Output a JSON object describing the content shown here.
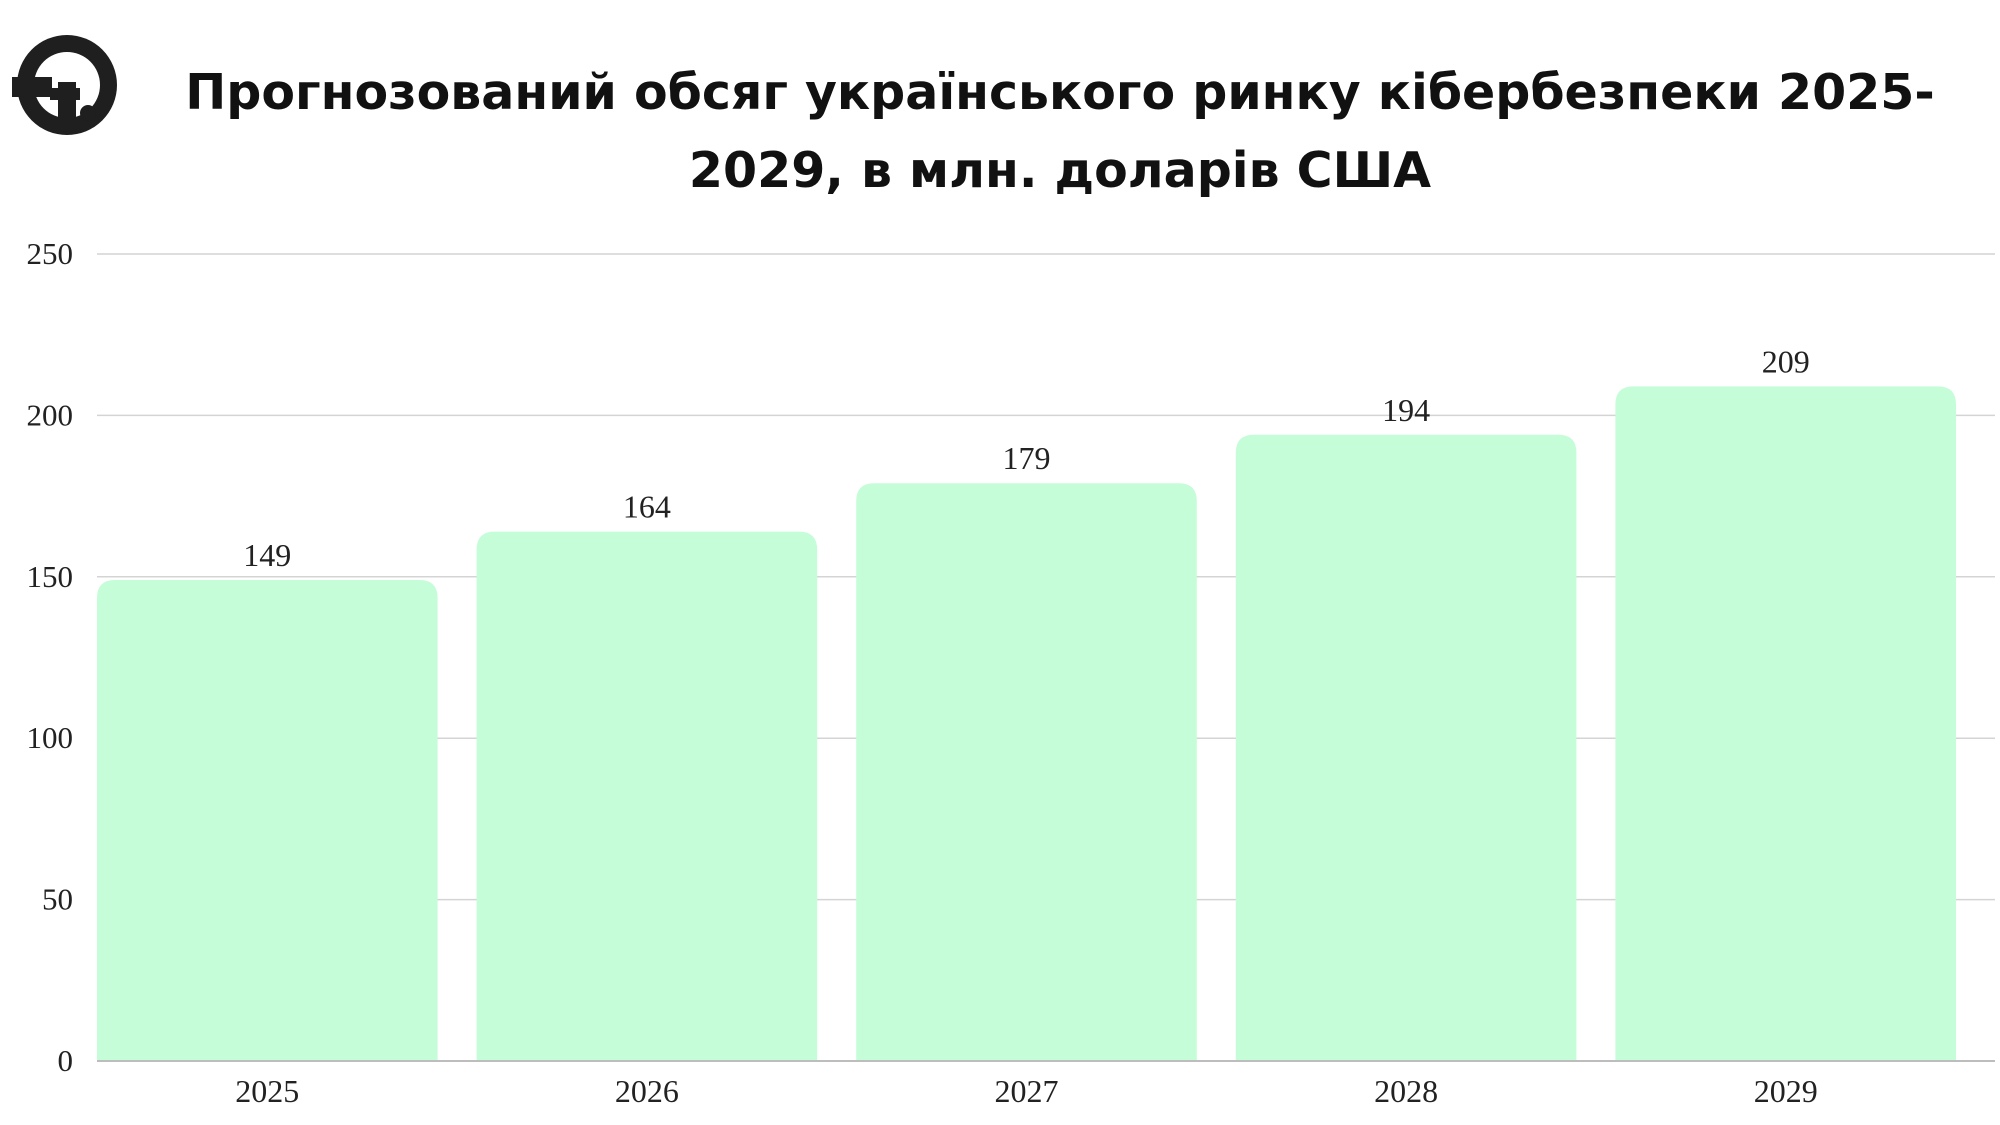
{
  "chart_data": {
    "type": "bar",
    "title": "Прогнозований обсяг українського ринку кібербезпеки 2025-2029, в млн. доларів США",
    "categories": [
      "2025",
      "2026",
      "2027",
      "2028",
      "2029"
    ],
    "values": [
      149,
      164,
      179,
      194,
      209
    ],
    "value_labels": [
      "149",
      "164",
      "179",
      "194",
      "209"
    ],
    "ylim": [
      0,
      250
    ],
    "yticks": [
      0,
      50,
      100,
      150,
      200,
      250
    ],
    "ytick_labels": [
      "0",
      "50",
      "100",
      "150",
      "200",
      "250"
    ],
    "xlabel": "",
    "ylabel": "",
    "grid": true,
    "legend": "none",
    "bar_color": "#c5fdd9",
    "grid_color": "#d4d4d4",
    "text_color": "#111111"
  },
  "brand": {
    "logo_icon": "brand-logo-icon",
    "logo_color": "#1f1f1f"
  }
}
